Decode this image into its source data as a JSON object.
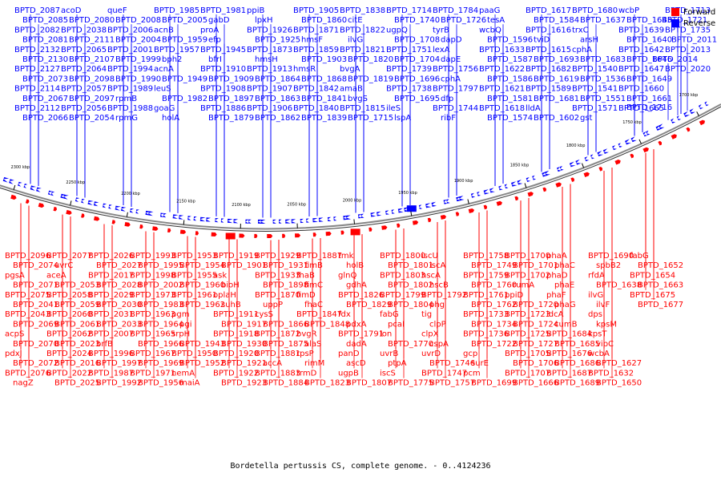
{
  "caption": "Bordetella pertussis CS, complete genome. - 0..4124236",
  "legend": [
    {
      "label": "Forward",
      "color": "#ff0000"
    },
    {
      "label": "Reverse",
      "color": "#0000ff"
    }
  ],
  "colors": {
    "forward": "#ff0000",
    "reverse": "#0000ff",
    "backbone": "#666666"
  },
  "kbp_ticks": [
    "2300 kbp",
    "2250 kbp",
    "2200 kbp",
    "2150 kbp",
    "2100 kbp",
    "2050 kbp",
    "2000 kbp",
    "1950 kbp",
    "1900 kbp",
    "1850 kbp",
    "1800 kbp",
    "1750 kbp",
    "1700 kbp"
  ],
  "reverse_labels": [
    "BPTD_2087",
    "BPTD_2085",
    "BPTD_2082",
    "BPTD_2081",
    "BPTD_2132",
    "BPTD_2130",
    "BPTD_2127",
    "BPTD_2073",
    "BPTD_2114",
    "BPTD_2067",
    "BPTD_2112",
    "BPTD_2066",
    "acoD",
    "BPTD_2080",
    "BPTD_2038",
    "BPTD_2111",
    "BPTD_2065",
    "BPTD_2107",
    "BPTD_2064",
    "BPTD_2098",
    "BPTD_2057",
    "BPTD_2097",
    "BPTD_2056",
    "BPTD_2054",
    "queF",
    "BPTD_2008",
    "BPTD_2006",
    "BPTD_2004",
    "BPTD_2001",
    "BPTD_1999",
    "BPTD_1994",
    "BPTD_1990",
    "BPTD_1989",
    "rpmB",
    "BPTD_1988",
    "rpmG",
    "BPTD_1985",
    "BPTD_2005",
    "acnB",
    "BPTD_1959",
    "BPTD_1957",
    "bph2",
    "acnA",
    "BPTD_1949",
    "leuS",
    "BPTD_1982",
    "goaG",
    "holA",
    "BPTD_1981",
    "gabD",
    "proA",
    "efp",
    "BPTD_1945",
    "bfrI",
    "BPTD_1910",
    "BPTD_1909",
    "BPTD_1908",
    "BPTD_1897",
    "BPTD_1886",
    "BPTD_1879",
    "ppiB",
    "lpxH",
    "BPTD_1926",
    "BPTD_1925",
    "BPTD_1873",
    "hmsH",
    "BPTD_1913",
    "BPTD_1864",
    "BPTD_1907",
    "BPTD_1863",
    "BPTD_1906",
    "BPTD_1862",
    "BPTD_1905",
    "BPTD_1860",
    "BPTD_1871",
    "hmsF",
    "BPTD_1859",
    "BPTD_1903",
    "hmsR",
    "BPTD_1868",
    "BPTD_1842",
    "BPTD_1841",
    "BPTD_1840",
    "BPTD_1839",
    "BPTD_1838",
    "citE",
    "BPTD_1822",
    "ilvG",
    "BPTD_1821",
    "BPTD_1820",
    "bvgA",
    "BPTD_1819",
    "amaB",
    "bvgS",
    "BPTD_1815",
    "BPTD_1715",
    "BPTD_1714",
    "BPTD_1740",
    "ugpQ",
    "BPTD_1708",
    "BPTD_1751",
    "BPTD_1704",
    "BPTD_1739",
    "BPTD_1696",
    "BPTD_1738",
    "BPTD_1695",
    "ileS",
    "lspA",
    "BPTD_1784",
    "BPTD_1726",
    "tyrB",
    "dapD",
    "lexA",
    "dapE",
    "BPTD_1756",
    "cphA",
    "BPTD_1797",
    "dfp",
    "BPTD_1744",
    "ribF",
    "paaG",
    "tesA",
    "wcbQ",
    "BPTD_1596",
    "BPTD_1633",
    "BPTD_1587",
    "BPTD_1622",
    "BPTD_1586",
    "BPTD_1621",
    "BPTD_1581",
    "BPTD_1618",
    "BPTD_1574",
    "BPTD_1617",
    "BPTD_1584",
    "BPTD_1616",
    "tviD",
    "BPTD_1615",
    "BPTD_1693",
    "BPTD_1682",
    "BPTD_1619",
    "BPTD_1589",
    "BPTD_1681",
    "lldA",
    "BPTD_1602",
    "BPTD_1680",
    "BPTD_1637",
    "trxC",
    "arsH",
    "cphA",
    "BPTD_1683",
    "BPTD_1540",
    "BPTD_1536",
    "BPTD_1541",
    "BPTD_1551",
    "BPTD_1571",
    "gst",
    "wcbP",
    "BPTD_1645",
    "BPTD_1639",
    "BPTD_1640",
    "BPTD_1642",
    "BPTD_1646",
    "BPTD_1647",
    "BPTD_1649",
    "BPTD_1660",
    "BPTD_1661",
    "BPTD_1665",
    "BPTD_1716",
    "BPTD_1713",
    "BPTD_1721",
    "BPTD_1735",
    "BPTD_2011",
    "BPTD_2013",
    "BPTD_2014",
    "BPTD_2020"
  ],
  "forward_labels": [
    "BPTD_2096",
    "BPTD_2074",
    "pgsA",
    "BPTD_2071",
    "BPTD_2075",
    "BPTD_2041",
    "BPTD_2043",
    "BPTD_2069",
    "acpS",
    "BPTD_2070",
    "pdxJ",
    "BPTD_2072",
    "BPTD_2076",
    "nagZ",
    "BPTD_2077",
    "uvrC",
    "aceA",
    "BPTD_2053",
    "BPTD_2058",
    "BPTD_2059",
    "BPTD_2060",
    "BPTD_2061",
    "BPTD_2062",
    "BPTD_2023",
    "BPTD_2024",
    "BPTD_2016",
    "BPTD_2022",
    "BPTD_2025",
    "BPTD_2026",
    "BPTD_2027",
    "BPTD_2017",
    "BPTD_2028",
    "BPTD_2029",
    "BPTD_2030",
    "BPTD_2031",
    "BPTD_2033",
    "BPTD_2007",
    "brfB",
    "BPTD_1996",
    "BPTD_1997",
    "BPTD_1987",
    "BPTD_1992",
    "BPTD_1993",
    "BPTD_1995",
    "BPTD_1998",
    "BPTD_2002",
    "BPTD_1973",
    "BPTD_1983",
    "BPTD_1963",
    "BPTD_1964",
    "BPTD_1965",
    "BPTD_1966",
    "BPTD_1967",
    "BPTD_1969",
    "BPTD_1971",
    "BPTD_1956",
    "BPTD_1953",
    "BPTD_1954",
    "BPTD_1955",
    "BPTD_1960",
    "BPTD_1961",
    "BPTD_1962",
    "pgm",
    "pgi",
    "srpH",
    "BPTD_1943",
    "BPTD_1950",
    "BPTD_1952",
    "nemA",
    "maiA",
    "BPTD_1919",
    "BPTD_1901",
    "ask",
    "bioH",
    "oplaH",
    "suhB",
    "BPTD_1911",
    "BPTD_1917",
    "BPTD_1918",
    "BPTD_1930",
    "BPTD_1920",
    "BPTD_1921",
    "BPTD_1922",
    "BPTD_1923",
    "BPTD_1929",
    "BPTD_1931",
    "BPTD_1933",
    "BPTD_1898",
    "BPTD_1870",
    "uppP",
    "cysS",
    "BPTD_1866",
    "BPTD_1872",
    "BPTD_1875",
    "BPTD_1881",
    "accA",
    "BPTD_1883",
    "BPTD_1884",
    "BPTD_1887",
    "fimB",
    "fhaB",
    "fimC",
    "fimD",
    "fhaC",
    "BPTD_1847",
    "BPTD_1848",
    "bvgR",
    "alaS",
    "rpsP",
    "rimM",
    "trmD",
    "BPTD_1823",
    "tmk",
    "holB",
    "glnQ",
    "gdhA",
    "BPTD_1826",
    "BPTD_1829",
    "fdx",
    "pdxA",
    "BPTD_1791",
    "dadA",
    "panD",
    "ascD",
    "ugpB",
    "BPTD_1807",
    "BPTD_1800",
    "BPTD_1801",
    "BPTD_1803",
    "BPTD_1802",
    "BPTD_1799",
    "BPTD_1804",
    "fabG",
    "pcaI",
    "lon",
    "BPTD_1770",
    "uvrB",
    "ptpA",
    "iscS",
    "BPTD_1775",
    "iscU",
    "iscA",
    "hscA",
    "hscB",
    "BPTD_1792",
    "phg",
    "tig",
    "clpP",
    "clpX",
    "cspA",
    "uvrD",
    "BPTD_1746",
    "BPTD_1747",
    "BPTD_1757",
    "BPTD_1758",
    "BPTD_1749",
    "BPTD_1759",
    "BPTD_1760",
    "BPTD_1761",
    "BPTD_1762",
    "BPTD_1733",
    "BPTD_1734",
    "BPTD_1736",
    "BPTD_1722",
    "gcp",
    "surE",
    "pcm",
    "BPTD_1699",
    "BPTD_1700",
    "BPTD_1701",
    "BPTD_1702",
    "rumA",
    "ppiD",
    "BPTD_1720",
    "BPTD_1723",
    "BPTD_1724",
    "BPTD_1725",
    "BPTD_1727",
    "BPTD_1705",
    "BPTD_1706",
    "BPTD_1707",
    "BPTD_1666",
    "phaA",
    "phaC",
    "phaD",
    "phaE",
    "phaF",
    "phaG",
    "ldcA",
    "cumB",
    "BPTD_1684",
    "BPTD_1685",
    "BPTD_1676",
    "BPTD_1686",
    "BPTD_1687",
    "BPTD_1689",
    "BPTD_1690",
    "spbB2",
    "rfdA",
    "BPTD_1638",
    "ilvG",
    "ilvF",
    "dps",
    "kpsM",
    "kpsT",
    "vipC",
    "wcbA",
    "BPTD_1627",
    "BPTD_1632",
    "BPTD_1650",
    "fabG",
    "BPTD_1652",
    "BPTD_1654",
    "BPTD_1663",
    "BPTD_1675",
    "BPTD_1677"
  ]
}
